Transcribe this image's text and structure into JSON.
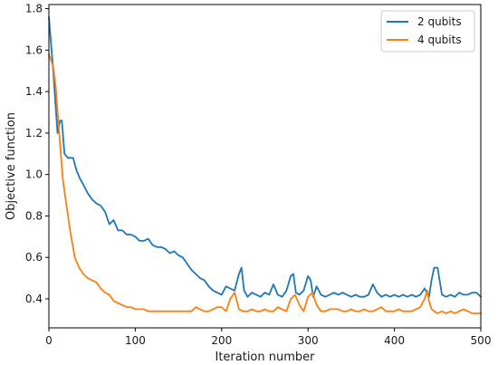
{
  "chart_data": {
    "type": "line",
    "xlabel": "Iteration number",
    "ylabel": "Objective function",
    "xlim": [
      0,
      500
    ],
    "ylim": [
      0.26,
      1.82
    ],
    "xticks": [
      0,
      100,
      200,
      300,
      400,
      500
    ],
    "xtick_labels": [
      "0",
      "100",
      "200",
      "300",
      "400",
      "500"
    ],
    "yticks": [
      0.4,
      0.6,
      0.8,
      1.0,
      1.2,
      1.4,
      1.6,
      1.8
    ],
    "ytick_labels": [
      "0.4",
      "0.6",
      "0.8",
      "1.0",
      "1.2",
      "1.4",
      "1.6",
      "1.8"
    ],
    "grid": false,
    "legend_position": "upper right",
    "series": [
      {
        "name": "2 qubits",
        "color": "#1f77b4",
        "x": [
          0,
          5,
          10,
          13,
          15,
          18,
          22,
          28,
          32,
          36,
          40,
          45,
          50,
          55,
          60,
          65,
          70,
          75,
          80,
          85,
          90,
          95,
          100,
          105,
          110,
          115,
          120,
          125,
          130,
          135,
          140,
          145,
          150,
          155,
          160,
          165,
          170,
          175,
          180,
          185,
          190,
          195,
          200,
          205,
          210,
          215,
          220,
          223,
          226,
          230,
          235,
          240,
          245,
          250,
          255,
          260,
          265,
          270,
          275,
          280,
          283,
          286,
          290,
          295,
          300,
          303,
          306,
          310,
          315,
          320,
          325,
          330,
          335,
          340,
          345,
          350,
          355,
          360,
          365,
          370,
          375,
          380,
          385,
          390,
          395,
          400,
          405,
          410,
          415,
          420,
          425,
          430,
          435,
          440,
          443,
          446,
          450,
          455,
          460,
          465,
          470,
          475,
          480,
          485,
          490,
          495,
          500
        ],
        "y": [
          1.76,
          1.5,
          1.2,
          1.26,
          1.26,
          1.1,
          1.08,
          1.08,
          1.02,
          0.98,
          0.95,
          0.91,
          0.88,
          0.86,
          0.85,
          0.82,
          0.76,
          0.78,
          0.73,
          0.73,
          0.71,
          0.71,
          0.7,
          0.68,
          0.68,
          0.69,
          0.66,
          0.65,
          0.65,
          0.64,
          0.62,
          0.63,
          0.61,
          0.6,
          0.57,
          0.54,
          0.52,
          0.5,
          0.49,
          0.46,
          0.44,
          0.43,
          0.42,
          0.46,
          0.45,
          0.44,
          0.52,
          0.55,
          0.44,
          0.41,
          0.43,
          0.42,
          0.41,
          0.43,
          0.42,
          0.47,
          0.42,
          0.41,
          0.44,
          0.51,
          0.52,
          0.43,
          0.42,
          0.44,
          0.51,
          0.49,
          0.41,
          0.46,
          0.42,
          0.41,
          0.42,
          0.43,
          0.42,
          0.43,
          0.42,
          0.41,
          0.42,
          0.41,
          0.41,
          0.42,
          0.47,
          0.43,
          0.41,
          0.42,
          0.41,
          0.42,
          0.41,
          0.42,
          0.41,
          0.42,
          0.41,
          0.42,
          0.45,
          0.41,
          0.49,
          0.55,
          0.55,
          0.42,
          0.41,
          0.42,
          0.41,
          0.43,
          0.42,
          0.42,
          0.43,
          0.43,
          0.41
        ]
      },
      {
        "name": "4 qubits",
        "color": "#ff7f0e",
        "x": [
          0,
          5,
          8,
          12,
          16,
          20,
          25,
          30,
          35,
          40,
          45,
          50,
          55,
          60,
          65,
          70,
          75,
          80,
          85,
          90,
          95,
          100,
          105,
          110,
          115,
          120,
          125,
          130,
          140,
          150,
          160,
          165,
          170,
          175,
          180,
          185,
          190,
          195,
          200,
          205,
          210,
          215,
          220,
          225,
          230,
          235,
          240,
          245,
          250,
          255,
          260,
          265,
          270,
          275,
          280,
          285,
          290,
          295,
          300,
          305,
          310,
          315,
          320,
          325,
          330,
          335,
          340,
          345,
          350,
          355,
          360,
          365,
          370,
          375,
          380,
          385,
          390,
          395,
          400,
          405,
          410,
          415,
          420,
          425,
          430,
          435,
          438,
          440,
          443,
          446,
          450,
          455,
          460,
          465,
          470,
          475,
          480,
          485,
          490,
          495,
          500
        ],
        "y": [
          1.58,
          1.52,
          1.42,
          1.2,
          0.98,
          0.86,
          0.72,
          0.6,
          0.55,
          0.52,
          0.5,
          0.49,
          0.48,
          0.45,
          0.43,
          0.42,
          0.39,
          0.38,
          0.37,
          0.36,
          0.36,
          0.35,
          0.35,
          0.35,
          0.34,
          0.34,
          0.34,
          0.34,
          0.34,
          0.34,
          0.34,
          0.34,
          0.36,
          0.35,
          0.34,
          0.34,
          0.35,
          0.36,
          0.36,
          0.34,
          0.4,
          0.43,
          0.35,
          0.34,
          0.34,
          0.35,
          0.34,
          0.34,
          0.35,
          0.34,
          0.34,
          0.36,
          0.35,
          0.34,
          0.4,
          0.42,
          0.37,
          0.34,
          0.41,
          0.43,
          0.37,
          0.34,
          0.34,
          0.35,
          0.35,
          0.35,
          0.34,
          0.34,
          0.35,
          0.34,
          0.34,
          0.35,
          0.34,
          0.34,
          0.35,
          0.36,
          0.34,
          0.34,
          0.34,
          0.35,
          0.34,
          0.34,
          0.34,
          0.35,
          0.36,
          0.4,
          0.44,
          0.39,
          0.35,
          0.34,
          0.33,
          0.34,
          0.33,
          0.34,
          0.33,
          0.34,
          0.35,
          0.34,
          0.33,
          0.33,
          0.33
        ]
      }
    ]
  }
}
